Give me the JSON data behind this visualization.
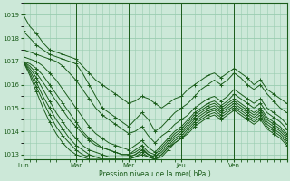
{
  "background_color": "#cce8d8",
  "plot_bg_color": "#cce8d8",
  "grid_color": "#99ccb0",
  "line_color": "#1a5c1a",
  "xlabel": "Pression niveau de la mer( hPa )",
  "ylim": [
    1012.8,
    1019.5
  ],
  "yticks": [
    1013,
    1014,
    1015,
    1016,
    1017,
    1018,
    1019
  ],
  "day_labels": [
    "Lun",
    "Mar",
    "Mer",
    "Jeu",
    "Ven"
  ],
  "series": [
    {
      "x": [
        0,
        3,
        6,
        9,
        12,
        15,
        18,
        21,
        24,
        27,
        30,
        33,
        36,
        39,
        42,
        45,
        48,
        51,
        54,
        57,
        60,
        63,
        66,
        69,
        72,
        75,
        78,
        81,
        84,
        87,
        90,
        93,
        96,
        99,
        102,
        105,
        108,
        111,
        114,
        117,
        120
      ],
      "y": [
        1019.0,
        1018.5,
        1018.2,
        1017.8,
        1017.5,
        1017.4,
        1017.3,
        1017.2,
        1017.1,
        1016.8,
        1016.5,
        1016.2,
        1016.0,
        1015.8,
        1015.6,
        1015.4,
        1015.2,
        1015.3,
        1015.5,
        1015.4,
        1015.2,
        1015.0,
        1015.2,
        1015.4,
        1015.5,
        1015.8,
        1016.0,
        1016.2,
        1016.4,
        1016.5,
        1016.3,
        1016.5,
        1016.7,
        1016.5,
        1016.3,
        1016.0,
        1016.2,
        1015.8,
        1015.6,
        1015.4,
        1015.2
      ]
    },
    {
      "x": [
        0,
        3,
        6,
        9,
        12,
        15,
        18,
        21,
        24,
        27,
        30,
        33,
        36,
        39,
        42,
        45,
        48,
        51,
        54,
        57,
        60,
        63,
        66,
        69,
        72,
        75,
        78,
        81,
        84,
        87,
        90,
        93,
        96,
        99,
        102,
        105,
        108,
        111,
        114,
        117,
        120
      ],
      "y": [
        1018.3,
        1018.0,
        1017.7,
        1017.5,
        1017.3,
        1017.2,
        1017.1,
        1017.0,
        1016.9,
        1016.5,
        1016.0,
        1015.5,
        1015.0,
        1014.8,
        1014.6,
        1014.4,
        1014.2,
        1014.5,
        1014.8,
        1014.5,
        1014.0,
        1014.2,
        1014.5,
        1014.8,
        1015.0,
        1015.2,
        1015.5,
        1015.8,
        1016.0,
        1016.2,
        1016.0,
        1016.2,
        1016.5,
        1016.3,
        1016.0,
        1015.8,
        1016.0,
        1015.6,
        1015.3,
        1015.0,
        1014.8
      ]
    },
    {
      "x": [
        0,
        3,
        6,
        9,
        12,
        15,
        18,
        21,
        24,
        27,
        30,
        33,
        36,
        39,
        42,
        45,
        48,
        51,
        54,
        57,
        60,
        63,
        66,
        69,
        72,
        75,
        78,
        81,
        84,
        87,
        90,
        93,
        96,
        99,
        102,
        105,
        108,
        111,
        114,
        117,
        120
      ],
      "y": [
        1017.5,
        1017.4,
        1017.3,
        1017.2,
        1017.1,
        1017.0,
        1016.8,
        1016.5,
        1016.2,
        1015.8,
        1015.4,
        1015.0,
        1014.7,
        1014.5,
        1014.3,
        1014.1,
        1013.9,
        1014.0,
        1014.2,
        1013.8,
        1013.5,
        1013.8,
        1014.0,
        1014.3,
        1014.5,
        1014.7,
        1015.0,
        1015.2,
        1015.4,
        1015.5,
        1015.3,
        1015.5,
        1015.8,
        1015.6,
        1015.4,
        1015.2,
        1015.4,
        1015.0,
        1014.8,
        1014.6,
        1014.3
      ]
    },
    {
      "x": [
        0,
        3,
        6,
        9,
        12,
        15,
        18,
        21,
        24,
        27,
        30,
        33,
        36,
        39,
        42,
        45,
        48,
        51,
        54,
        57,
        60,
        63,
        66,
        69,
        72,
        75,
        78,
        81,
        84,
        87,
        90,
        93,
        96,
        99,
        102,
        105,
        108,
        111,
        114,
        117,
        120
      ],
      "y": [
        1017.2,
        1017.1,
        1017.0,
        1016.8,
        1016.5,
        1016.2,
        1015.8,
        1015.4,
        1015.0,
        1014.6,
        1014.2,
        1013.9,
        1013.7,
        1013.5,
        1013.4,
        1013.3,
        1013.2,
        1013.4,
        1013.6,
        1013.3,
        1013.1,
        1013.4,
        1013.7,
        1014.0,
        1014.2,
        1014.5,
        1014.8,
        1015.0,
        1015.2,
        1015.3,
        1015.1,
        1015.3,
        1015.6,
        1015.4,
        1015.2,
        1015.0,
        1015.2,
        1014.8,
        1014.6,
        1014.4,
        1014.1
      ]
    },
    {
      "x": [
        0,
        3,
        6,
        9,
        12,
        15,
        18,
        21,
        24,
        27,
        30,
        33,
        36,
        39,
        42,
        45,
        48,
        51,
        54,
        57,
        60,
        63,
        66,
        69,
        72,
        75,
        78,
        81,
        84,
        87,
        90,
        93,
        96,
        99,
        102,
        105,
        108,
        111,
        114,
        117,
        120
      ],
      "y": [
        1017.0,
        1016.9,
        1016.7,
        1016.4,
        1016.0,
        1015.6,
        1015.2,
        1014.8,
        1014.4,
        1014.0,
        1013.7,
        1013.5,
        1013.3,
        1013.2,
        1013.1,
        1013.0,
        1013.0,
        1013.2,
        1013.4,
        1013.1,
        1013.0,
        1013.3,
        1013.6,
        1013.9,
        1014.1,
        1014.4,
        1014.7,
        1014.9,
        1015.1,
        1015.2,
        1015.0,
        1015.2,
        1015.4,
        1015.2,
        1015.0,
        1014.8,
        1015.0,
        1014.6,
        1014.4,
        1014.2,
        1013.9
      ]
    },
    {
      "x": [
        0,
        3,
        6,
        9,
        12,
        15,
        18,
        21,
        24,
        27,
        30,
        33,
        36,
        39,
        42,
        45,
        48,
        51,
        54,
        57,
        60,
        63,
        66,
        69,
        72,
        75,
        78,
        81,
        84,
        87,
        90,
        93,
        96,
        99,
        102,
        105,
        108,
        111,
        114,
        117,
        120
      ],
      "y": [
        1017.0,
        1016.8,
        1016.5,
        1016.1,
        1015.7,
        1015.3,
        1014.9,
        1014.5,
        1014.2,
        1013.9,
        1013.6,
        1013.4,
        1013.3,
        1013.2,
        1013.1,
        1013.0,
        1013.0,
        1013.1,
        1013.3,
        1013.0,
        1012.9,
        1013.2,
        1013.5,
        1013.8,
        1014.0,
        1014.3,
        1014.6,
        1014.8,
        1015.0,
        1015.1,
        1014.9,
        1015.1,
        1015.3,
        1015.1,
        1014.9,
        1014.7,
        1014.9,
        1014.5,
        1014.3,
        1014.1,
        1013.8
      ]
    },
    {
      "x": [
        0,
        3,
        6,
        9,
        12,
        15,
        18,
        21,
        24,
        27,
        30,
        33,
        36,
        39,
        42,
        45,
        48,
        51,
        54,
        57,
        60,
        63,
        66,
        69,
        72,
        75,
        78,
        81,
        84,
        87,
        90,
        93,
        96,
        99,
        102,
        105,
        108,
        111,
        114,
        117,
        120
      ],
      "y": [
        1017.0,
        1016.7,
        1016.3,
        1015.8,
        1015.3,
        1014.8,
        1014.4,
        1014.0,
        1013.7,
        1013.4,
        1013.2,
        1013.1,
        1013.0,
        1012.9,
        1012.9,
        1012.9,
        1012.9,
        1013.0,
        1013.2,
        1013.0,
        1012.9,
        1013.1,
        1013.4,
        1013.7,
        1013.9,
        1014.2,
        1014.5,
        1014.7,
        1014.9,
        1015.0,
        1014.8,
        1015.0,
        1015.2,
        1015.0,
        1014.8,
        1014.6,
        1014.8,
        1014.4,
        1014.2,
        1014.0,
        1013.7
      ]
    },
    {
      "x": [
        0,
        3,
        6,
        9,
        12,
        15,
        18,
        21,
        24,
        27,
        30,
        33,
        36,
        39,
        42,
        45,
        48,
        51,
        54,
        57,
        60,
        63,
        66,
        69,
        72,
        75,
        78,
        81,
        84,
        87,
        90,
        93,
        96,
        99,
        102,
        105,
        108,
        111,
        114,
        117,
        120
      ],
      "y": [
        1017.0,
        1016.6,
        1016.1,
        1015.5,
        1015.0,
        1014.5,
        1014.1,
        1013.7,
        1013.4,
        1013.2,
        1013.0,
        1012.9,
        1012.9,
        1012.9,
        1012.9,
        1012.9,
        1012.9,
        1013.0,
        1013.2,
        1013.0,
        1012.8,
        1013.0,
        1013.3,
        1013.6,
        1013.8,
        1014.1,
        1014.4,
        1014.6,
        1014.8,
        1014.9,
        1014.7,
        1014.9,
        1015.1,
        1014.9,
        1014.7,
        1014.5,
        1014.7,
        1014.3,
        1014.1,
        1013.9,
        1013.6
      ]
    },
    {
      "x": [
        0,
        3,
        6,
        9,
        12,
        15,
        18,
        21,
        24,
        27,
        30,
        33,
        36,
        39,
        42,
        45,
        48,
        51,
        54,
        57,
        60,
        63,
        66,
        69,
        72,
        75,
        78,
        81,
        84,
        87,
        90,
        93,
        96,
        99,
        102,
        105,
        108,
        111,
        114,
        117,
        120
      ],
      "y": [
        1017.0,
        1016.5,
        1015.9,
        1015.3,
        1014.7,
        1014.2,
        1013.8,
        1013.5,
        1013.2,
        1013.0,
        1012.9,
        1012.9,
        1012.8,
        1012.8,
        1012.8,
        1012.8,
        1012.8,
        1012.9,
        1013.1,
        1012.9,
        1012.8,
        1013.0,
        1013.3,
        1013.5,
        1013.7,
        1014.0,
        1014.3,
        1014.5,
        1014.7,
        1014.8,
        1014.6,
        1014.8,
        1015.0,
        1014.8,
        1014.6,
        1014.4,
        1014.6,
        1014.2,
        1014.0,
        1013.8,
        1013.5
      ]
    },
    {
      "x": [
        0,
        3,
        6,
        9,
        12,
        15,
        18,
        21,
        24,
        27,
        30,
        33,
        36,
        39,
        42,
        45,
        48,
        51,
        54,
        57,
        60,
        63,
        66,
        69,
        72,
        75,
        78,
        81,
        84,
        87,
        90,
        93,
        96,
        99,
        102,
        105,
        108,
        111,
        114,
        117,
        120
      ],
      "y": [
        1017.0,
        1016.4,
        1015.7,
        1015.0,
        1014.4,
        1013.9,
        1013.5,
        1013.2,
        1013.0,
        1012.9,
        1012.8,
        1012.8,
        1012.8,
        1012.8,
        1012.8,
        1012.8,
        1012.8,
        1012.9,
        1013.0,
        1012.9,
        1012.8,
        1012.9,
        1013.2,
        1013.5,
        1013.7,
        1013.9,
        1014.2,
        1014.4,
        1014.6,
        1014.7,
        1014.5,
        1014.7,
        1014.9,
        1014.7,
        1014.5,
        1014.3,
        1014.5,
        1014.1,
        1013.9,
        1013.7,
        1013.4
      ]
    }
  ]
}
